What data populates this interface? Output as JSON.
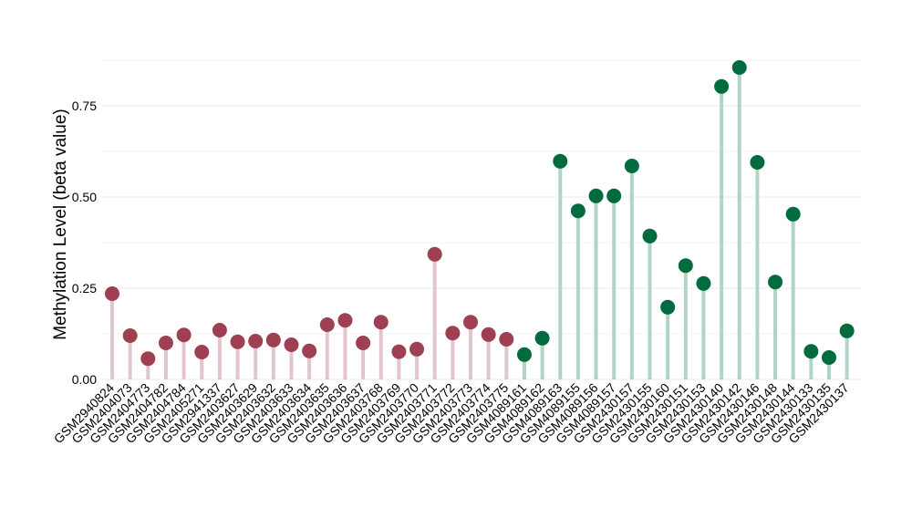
{
  "chart_data": {
    "type": "lollipop",
    "title": "",
    "xlabel": "",
    "ylabel": "Methylation Level (beta value)",
    "ylim": [
      0,
      0.9
    ],
    "yticks": [
      0.0,
      0.25,
      0.5,
      0.75
    ],
    "ytick_labels": [
      "0.00",
      "0.25",
      "0.50",
      "0.75"
    ],
    "grid": true,
    "legend": "none",
    "group_colors": {
      "group1": {
        "point": "#9e3f52",
        "stem": "#e3c6cd"
      },
      "group2": {
        "point": "#006b3e",
        "stem": "#b2d4c6"
      }
    },
    "categories": [
      "GSM2940824",
      "GSM2404073",
      "GSM2404773",
      "GSM2404782",
      "GSM2404784",
      "GSM2405271",
      "GSM2941337",
      "GSM2403627",
      "GSM2403629",
      "GSM2403632",
      "GSM2403633",
      "GSM2403634",
      "GSM2403635",
      "GSM2403636",
      "GSM2403637",
      "GSM2403768",
      "GSM2403769",
      "GSM2403770",
      "GSM2403771",
      "GSM2403772",
      "GSM2403773",
      "GSM2403774",
      "GSM2403775",
      "GSM4089161",
      "GSM4089162",
      "GSM4089163",
      "GSM4089155",
      "GSM4089156",
      "GSM4089157",
      "GSM2430157",
      "GSM2430155",
      "GSM2430160",
      "GSM2430151",
      "GSM2430153",
      "GSM2430140",
      "GSM2430142",
      "GSM2430146",
      "GSM2430148",
      "GSM2430144",
      "GSM2430133",
      "GSM2430135",
      "GSM2430137"
    ],
    "values": [
      0.235,
      0.12,
      0.057,
      0.1,
      0.122,
      0.075,
      0.135,
      0.103,
      0.105,
      0.108,
      0.095,
      0.078,
      0.15,
      0.162,
      0.1,
      0.157,
      0.076,
      0.083,
      0.343,
      0.127,
      0.157,
      0.123,
      0.11,
      0.068,
      0.113,
      0.598,
      0.462,
      0.503,
      0.503,
      0.585,
      0.393,
      0.198,
      0.312,
      0.263,
      0.803,
      0.855,
      0.595,
      0.267,
      0.453,
      0.077,
      0.06,
      0.133
    ],
    "groups": [
      "group1",
      "group1",
      "group1",
      "group1",
      "group1",
      "group1",
      "group1",
      "group1",
      "group1",
      "group1",
      "group1",
      "group1",
      "group1",
      "group1",
      "group1",
      "group1",
      "group1",
      "group1",
      "group1",
      "group1",
      "group1",
      "group1",
      "group1",
      "group2",
      "group2",
      "group2",
      "group2",
      "group2",
      "group2",
      "group2",
      "group2",
      "group2",
      "group2",
      "group2",
      "group2",
      "group2",
      "group2",
      "group2",
      "group2",
      "group2",
      "group2",
      "group2"
    ]
  }
}
